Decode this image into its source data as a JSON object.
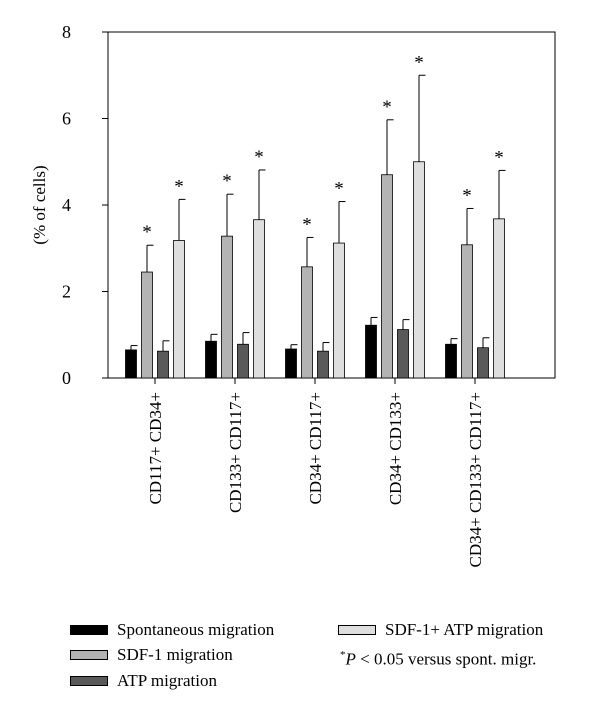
{
  "chart_data": {
    "type": "bar",
    "title": "",
    "xlabel": "",
    "ylabel": "(% of cells)",
    "ylim": [
      0,
      8
    ],
    "yticks": [
      0,
      2,
      4,
      6,
      8
    ],
    "grid": false,
    "legend_position": "bottom",
    "categories": [
      "CD117+ CD34+",
      "CD133+ CD117+",
      "CD34+ CD117+",
      "CD34+ CD133+",
      "CD34+ CD133+ CD117+"
    ],
    "series": [
      {
        "name": "Spontaneous migration",
        "color": "#000000",
        "values": [
          0.65,
          0.85,
          0.67,
          1.22,
          0.78
        ],
        "errors": [
          0.1,
          0.16,
          0.1,
          0.18,
          0.13
        ],
        "significant": [
          false,
          false,
          false,
          false,
          false
        ]
      },
      {
        "name": "SDF-1 migration",
        "color": "#b3b3b3",
        "values": [
          2.45,
          3.28,
          2.57,
          4.7,
          3.08
        ],
        "errors": [
          0.62,
          0.97,
          0.68,
          1.27,
          0.84
        ],
        "significant": [
          true,
          true,
          true,
          true,
          true
        ]
      },
      {
        "name": "ATP migration",
        "color": "#595959",
        "values": [
          0.62,
          0.78,
          0.62,
          1.12,
          0.7
        ],
        "errors": [
          0.24,
          0.27,
          0.2,
          0.23,
          0.23
        ],
        "significant": [
          false,
          false,
          false,
          false,
          false
        ]
      },
      {
        "name": "SDF-1+ ATP migration",
        "color": "#dedede",
        "values": [
          3.18,
          3.66,
          3.12,
          5.0,
          3.68
        ],
        "errors": [
          0.95,
          1.15,
          0.96,
          2.0,
          1.12
        ],
        "significant": [
          true,
          true,
          true,
          true,
          true
        ]
      }
    ],
    "significance_marker": "*",
    "annotation": {
      "star": "*",
      "p": "P",
      "rest": " < 0.05 versus spont. migr."
    }
  },
  "legend": {
    "spontaneous": "Spontaneous migration",
    "sdf1": "SDF-1 migration",
    "atp": "ATP migration",
    "sdf1_atp": "SDF-1+ ATP migration"
  }
}
